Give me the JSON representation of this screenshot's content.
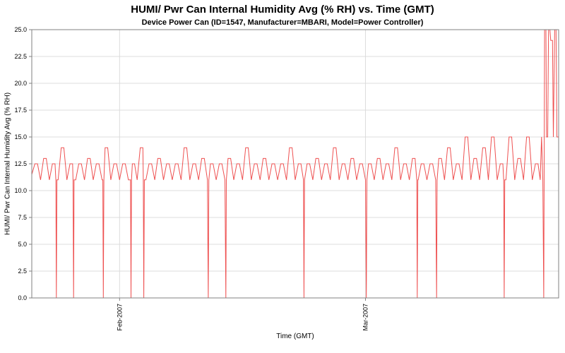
{
  "title": "HUMI/ Pwr Can Internal Humidity Avg (% RH) vs. Time (GMT)",
  "subtitle": "Device Power Can (ID=1547, Manufacturer=MBARI, Model=Power Controller)",
  "chart_data": {
    "type": "line",
    "title": "HUMI/ Pwr Can Internal Humidity Avg (% RH) vs. Time (GMT)",
    "subtitle": "Device Power Can (ID=1547, Manufacturer=MBARI, Model=Power Controller)",
    "xlabel": "Time (GMT)",
    "ylabel": "HUMI/ Pwr Can Internal Humidity Avg (% RH)",
    "xlim": [
      0,
      60
    ],
    "ylim": [
      0,
      25
    ],
    "yticks": [
      0,
      2.5,
      5,
      7.5,
      10,
      12.5,
      15,
      17.5,
      20,
      22.5,
      25
    ],
    "xticks": [
      {
        "label": "Feb-2007",
        "x": 10
      },
      {
        "label": "Mar-2007",
        "x": 38
      }
    ],
    "grid": true,
    "legend": "none",
    "series_color": "#ee5050",
    "grid_color": "#dcdcdc",
    "axis_color": "#808080",
    "series": [
      {
        "name": "HUMI/ Pwr Can Internal Humidity Avg (% RH)",
        "points": [
          [
            0,
            11.5
          ],
          [
            0.35,
            12.5
          ],
          [
            0.65,
            12.5
          ],
          [
            1,
            11
          ],
          [
            1.35,
            13
          ],
          [
            1.65,
            13
          ],
          [
            2,
            11
          ],
          [
            2.35,
            12.5
          ],
          [
            2.65,
            12.5
          ],
          [
            2.74,
            11
          ],
          [
            2.8,
            0
          ],
          [
            2.86,
            11
          ],
          [
            3,
            11
          ],
          [
            3.35,
            14
          ],
          [
            3.65,
            14
          ],
          [
            4,
            11
          ],
          [
            4.35,
            12.5
          ],
          [
            4.65,
            12.5
          ],
          [
            4.7,
            11
          ],
          [
            4.76,
            0
          ],
          [
            4.82,
            11
          ],
          [
            5,
            11
          ],
          [
            5.35,
            12.5
          ],
          [
            5.65,
            12.5
          ],
          [
            6,
            11
          ],
          [
            6.35,
            13
          ],
          [
            6.65,
            13
          ],
          [
            7,
            11
          ],
          [
            7.35,
            12.5
          ],
          [
            7.65,
            12.5
          ],
          [
            8,
            11
          ],
          [
            8.09,
            11
          ],
          [
            8.15,
            0
          ],
          [
            8.21,
            11
          ],
          [
            8.35,
            14
          ],
          [
            8.65,
            14
          ],
          [
            9,
            11
          ],
          [
            9.35,
            12.5
          ],
          [
            9.65,
            12.5
          ],
          [
            10,
            11
          ],
          [
            10.35,
            12.5
          ],
          [
            10.65,
            12.5
          ],
          [
            11,
            11
          ],
          [
            11.24,
            11
          ],
          [
            11.3,
            0
          ],
          [
            11.36,
            11
          ],
          [
            11.45,
            12.5
          ],
          [
            11.7,
            12.5
          ],
          [
            12,
            11
          ],
          [
            12.35,
            14
          ],
          [
            12.65,
            14
          ],
          [
            12.7,
            11
          ],
          [
            12.76,
            0
          ],
          [
            12.82,
            11
          ],
          [
            13,
            11
          ],
          [
            13.35,
            12.5
          ],
          [
            13.65,
            12.5
          ],
          [
            14,
            11
          ],
          [
            14.35,
            13
          ],
          [
            14.65,
            13
          ],
          [
            15,
            11
          ],
          [
            15.35,
            12.5
          ],
          [
            15.65,
            12.5
          ],
          [
            16,
            11
          ],
          [
            16.35,
            12.5
          ],
          [
            16.65,
            12.5
          ],
          [
            17,
            11
          ],
          [
            17.35,
            14
          ],
          [
            17.65,
            14
          ],
          [
            18,
            11
          ],
          [
            18.35,
            12.5
          ],
          [
            18.65,
            12.5
          ],
          [
            19,
            11
          ],
          [
            19.35,
            13
          ],
          [
            19.65,
            13
          ],
          [
            20,
            11
          ],
          [
            20.1,
            0
          ],
          [
            20.16,
            11
          ],
          [
            20.35,
            12.5
          ],
          [
            20.65,
            12.5
          ],
          [
            21,
            11
          ],
          [
            21.35,
            12.5
          ],
          [
            21.65,
            12.5
          ],
          [
            22,
            11
          ],
          [
            22.1,
            0
          ],
          [
            22.16,
            11
          ],
          [
            22.35,
            13
          ],
          [
            22.65,
            13
          ],
          [
            23,
            11
          ],
          [
            23.35,
            12.5
          ],
          [
            23.65,
            12.5
          ],
          [
            24,
            11
          ],
          [
            24.35,
            14
          ],
          [
            24.65,
            14
          ],
          [
            25,
            11
          ],
          [
            25.35,
            12.5
          ],
          [
            25.65,
            12.5
          ],
          [
            26,
            11
          ],
          [
            26.35,
            13
          ],
          [
            26.65,
            13
          ],
          [
            27,
            11
          ],
          [
            27.35,
            12.5
          ],
          [
            27.65,
            12.5
          ],
          [
            28,
            11
          ],
          [
            28.35,
            12.5
          ],
          [
            28.65,
            12.5
          ],
          [
            29,
            11
          ],
          [
            29.35,
            14
          ],
          [
            29.65,
            14
          ],
          [
            30,
            11
          ],
          [
            30.35,
            12.5
          ],
          [
            30.65,
            12.5
          ],
          [
            30.94,
            11
          ],
          [
            31,
            0
          ],
          [
            31.06,
            11
          ],
          [
            31.35,
            12.5
          ],
          [
            31.65,
            12.5
          ],
          [
            32,
            11
          ],
          [
            32.35,
            13
          ],
          [
            32.65,
            13
          ],
          [
            33,
            11
          ],
          [
            33.35,
            12.5
          ],
          [
            33.65,
            12.5
          ],
          [
            34,
            11
          ],
          [
            34.35,
            14
          ],
          [
            34.65,
            14
          ],
          [
            35,
            11
          ],
          [
            35.35,
            12.5
          ],
          [
            35.65,
            12.5
          ],
          [
            36,
            11
          ],
          [
            36.35,
            13
          ],
          [
            36.65,
            13
          ],
          [
            37,
            11
          ],
          [
            37.35,
            12.5
          ],
          [
            37.65,
            12.5
          ],
          [
            38,
            11
          ],
          [
            38.1,
            0
          ],
          [
            38.16,
            11
          ],
          [
            38.35,
            12.5
          ],
          [
            38.65,
            12.5
          ],
          [
            39,
            11
          ],
          [
            39.35,
            13
          ],
          [
            39.65,
            13
          ],
          [
            40,
            11
          ],
          [
            40.35,
            12.5
          ],
          [
            40.65,
            12.5
          ],
          [
            41,
            11
          ],
          [
            41.35,
            14
          ],
          [
            41.65,
            14
          ],
          [
            42,
            11
          ],
          [
            42.35,
            12.5
          ],
          [
            42.65,
            12.5
          ],
          [
            43,
            11
          ],
          [
            43.35,
            13
          ],
          [
            43.65,
            13
          ],
          [
            43.84,
            11
          ],
          [
            43.9,
            0
          ],
          [
            43.96,
            11
          ],
          [
            44,
            11
          ],
          [
            44.35,
            12.5
          ],
          [
            44.65,
            12.5
          ],
          [
            45,
            11
          ],
          [
            45.35,
            12.5
          ],
          [
            45.65,
            12.5
          ],
          [
            46,
            11
          ],
          [
            46.1,
            0
          ],
          [
            46.16,
            11
          ],
          [
            46.35,
            13
          ],
          [
            46.65,
            13
          ],
          [
            47,
            11
          ],
          [
            47.35,
            14
          ],
          [
            47.65,
            14
          ],
          [
            48,
            11
          ],
          [
            48.35,
            12.5
          ],
          [
            48.65,
            12.5
          ],
          [
            49,
            11
          ],
          [
            49.35,
            15
          ],
          [
            49.65,
            15
          ],
          [
            50,
            11
          ],
          [
            50.35,
            13
          ],
          [
            50.65,
            13
          ],
          [
            51,
            11
          ],
          [
            51.35,
            14
          ],
          [
            51.65,
            14
          ],
          [
            52,
            11
          ],
          [
            52.35,
            15
          ],
          [
            52.65,
            15
          ],
          [
            53,
            11
          ],
          [
            53.35,
            12.5
          ],
          [
            53.65,
            12.5
          ],
          [
            53.74,
            11
          ],
          [
            53.8,
            0
          ],
          [
            53.86,
            11
          ],
          [
            54,
            11
          ],
          [
            54.35,
            15
          ],
          [
            54.65,
            15
          ],
          [
            55,
            11
          ],
          [
            55.35,
            13
          ],
          [
            55.65,
            13
          ],
          [
            56,
            11
          ],
          [
            56.35,
            15
          ],
          [
            56.65,
            15
          ],
          [
            57,
            11
          ],
          [
            57.35,
            12.5
          ],
          [
            57.65,
            12.5
          ],
          [
            57.9,
            11
          ],
          [
            58.05,
            15
          ],
          [
            58.2,
            11
          ],
          [
            58.3,
            0
          ],
          [
            58.4,
            25
          ],
          [
            58.55,
            25
          ],
          [
            58.62,
            15
          ],
          [
            58.75,
            15
          ],
          [
            58.85,
            25
          ],
          [
            59,
            25
          ],
          [
            59.1,
            24
          ],
          [
            59.3,
            24
          ],
          [
            59.4,
            15
          ],
          [
            59.55,
            25
          ],
          [
            59.7,
            25
          ],
          [
            59.8,
            15
          ],
          [
            60,
            15
          ]
        ]
      }
    ]
  }
}
